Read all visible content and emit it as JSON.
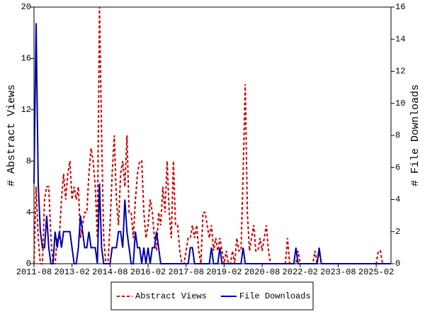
{
  "chart_data": {
    "type": "line",
    "x": [
      "2011-08",
      "2011-09",
      "2011-10",
      "2011-11",
      "2011-12",
      "2012-01",
      "2012-02",
      "2012-03",
      "2012-04",
      "2012-05",
      "2012-06",
      "2012-07",
      "2012-08",
      "2012-09",
      "2012-10",
      "2012-11",
      "2012-12",
      "2013-01",
      "2013-02",
      "2013-03",
      "2013-04",
      "2013-05",
      "2013-06",
      "2013-07",
      "2013-08",
      "2013-09",
      "2013-10",
      "2013-11",
      "2013-12",
      "2014-01",
      "2014-02",
      "2014-03",
      "2014-04",
      "2014-05",
      "2014-06",
      "2014-07",
      "2014-08",
      "2014-09",
      "2014-10",
      "2014-11",
      "2014-12",
      "2015-01",
      "2015-02",
      "2015-03",
      "2015-04",
      "2015-05",
      "2015-06",
      "2015-07",
      "2015-08",
      "2015-09",
      "2015-10",
      "2015-11",
      "2015-12",
      "2016-01",
      "2016-02",
      "2016-03",
      "2016-04",
      "2016-05",
      "2016-06",
      "2016-07",
      "2016-08",
      "2016-09",
      "2016-10",
      "2016-11",
      "2016-12",
      "2017-01",
      "2017-02",
      "2017-03",
      "2017-04",
      "2017-05",
      "2017-06",
      "2017-07",
      "2017-08",
      "2017-09",
      "2017-10",
      "2017-11",
      "2017-12",
      "2018-01",
      "2018-02",
      "2018-03",
      "2018-04",
      "2018-05",
      "2018-06",
      "2018-07",
      "2018-08",
      "2018-09",
      "2018-10",
      "2018-11",
      "2018-12",
      "2019-01",
      "2019-02",
      "2019-03",
      "2019-04",
      "2019-05",
      "2019-06",
      "2019-07",
      "2019-08",
      "2019-09",
      "2019-10",
      "2019-11",
      "2019-12",
      "2020-01",
      "2020-02",
      "2020-03",
      "2020-04",
      "2020-05",
      "2020-06",
      "2020-07",
      "2020-08",
      "2020-09",
      "2020-10",
      "2020-11",
      "2020-12",
      "2021-01",
      "2021-02",
      "2021-03",
      "2021-04",
      "2021-05",
      "2021-06",
      "2021-07",
      "2021-08",
      "2021-09",
      "2021-10",
      "2021-11",
      "2021-12",
      "2022-01",
      "2022-02",
      "2022-03",
      "2022-04",
      "2022-05",
      "2022-06",
      "2022-07",
      "2022-08",
      "2022-09",
      "2022-10",
      "2022-11",
      "2022-12",
      "2023-01",
      "2023-02",
      "2023-03",
      "2023-04",
      "2023-05",
      "2023-06",
      "2023-07",
      "2023-08",
      "2023-09",
      "2023-10",
      "2023-11",
      "2023-12",
      "2024-01",
      "2024-02",
      "2024-03",
      "2024-04",
      "2024-05",
      "2024-06",
      "2024-07",
      "2024-08",
      "2024-09",
      "2024-10",
      "2024-11",
      "2024-12",
      "2025-01",
      "2025-02",
      "2025-03",
      "2025-04",
      "2025-05",
      "2025-06",
      "2025-07",
      "2025-08",
      "2025-09"
    ],
    "series": [
      {
        "name": "Abstract Views",
        "color": "#cc0000",
        "dash": true,
        "values": [
          0,
          6,
          2,
          0,
          0,
          5,
          6,
          6,
          2,
          0,
          0,
          2,
          2,
          5,
          7,
          5,
          7,
          8,
          5,
          6,
          5,
          6,
          2,
          3,
          4,
          4,
          7,
          9,
          8,
          6,
          2,
          20,
          10,
          2,
          0,
          0,
          3,
          7,
          10,
          5,
          3,
          7,
          8,
          6,
          10,
          4,
          4,
          2,
          5,
          7,
          8,
          8,
          4,
          2,
          3,
          5,
          4,
          2,
          1,
          4,
          3,
          6,
          4,
          8,
          4,
          2,
          8,
          3,
          3,
          1,
          0,
          0,
          1,
          2,
          2,
          3,
          2,
          3,
          1,
          0,
          4,
          4,
          3,
          2,
          3,
          1,
          2,
          1,
          2,
          1,
          0,
          1,
          0,
          0,
          1,
          0,
          2,
          1,
          1,
          7,
          14,
          4,
          1,
          2,
          3,
          1,
          1,
          2,
          1,
          2,
          3,
          1,
          0,
          0,
          0,
          0,
          0,
          0,
          0,
          0,
          2,
          0,
          0,
          0,
          0,
          1,
          0,
          0,
          0,
          0,
          0,
          0,
          0,
          1,
          0,
          1,
          0,
          0,
          0,
          0,
          0,
          0,
          0,
          0,
          0,
          0,
          0,
          0,
          0,
          0,
          0,
          0,
          0,
          0,
          0,
          0,
          0,
          0,
          0,
          0,
          0,
          0,
          0,
          1,
          1,
          0,
          0,
          0,
          0,
          0
        ]
      },
      {
        "name": "File Downloads",
        "color": "#0000aa",
        "dash": false,
        "axis": "y2",
        "values": [
          5,
          15,
          5,
          2,
          1,
          1,
          3,
          1,
          0,
          0,
          2,
          1,
          2,
          1,
          2,
          2,
          2,
          2,
          1,
          0,
          0,
          1,
          3,
          2,
          1,
          1,
          2,
          1,
          1,
          1,
          0,
          5,
          1,
          0,
          0,
          0,
          0,
          1,
          1,
          1,
          2,
          2,
          1,
          4,
          2,
          1,
          0,
          0,
          2,
          1,
          1,
          0,
          1,
          0,
          1,
          0,
          1,
          1,
          2,
          1,
          0,
          0,
          0,
          0,
          0,
          0,
          0,
          0,
          0,
          0,
          0,
          0,
          0,
          0,
          1,
          1,
          0,
          0,
          0,
          0,
          0,
          0,
          0,
          0,
          1,
          0,
          0,
          0,
          1,
          0,
          0,
          0,
          0,
          0,
          0,
          0,
          0,
          0,
          0,
          1,
          0,
          0,
          0,
          0,
          0,
          0,
          0,
          0,
          0,
          0,
          0,
          0,
          0,
          0,
          0,
          0,
          0,
          0,
          0,
          0,
          0,
          0,
          0,
          0,
          1,
          0,
          0,
          0,
          0,
          0,
          0,
          0,
          0,
          0,
          0,
          1,
          0,
          0,
          0,
          0,
          0,
          0,
          0,
          0,
          0,
          0,
          0,
          0,
          0,
          0,
          0,
          0,
          0,
          0,
          0,
          0,
          0,
          0,
          0,
          0,
          0,
          0,
          0,
          0,
          0,
          0,
          0,
          0,
          0,
          0
        ]
      }
    ],
    "y_label": "# Abstract Views",
    "y2_label": "# File Downloads",
    "xlim": [
      "2011-08",
      "2025-09"
    ],
    "xticks": [
      "2011-08",
      "2013-02",
      "2014-08",
      "2016-02",
      "2017-08",
      "2019-02",
      "2020-08",
      "2022-02",
      "2023-08",
      "2025-02"
    ],
    "ylim": [
      0,
      20
    ],
    "yticks": [
      0,
      4,
      8,
      12,
      16,
      20
    ],
    "y2lim": [
      0,
      16
    ],
    "y2ticks": [
      0,
      2,
      4,
      6,
      8,
      10,
      12,
      14,
      16
    ],
    "legend": "bottom"
  }
}
